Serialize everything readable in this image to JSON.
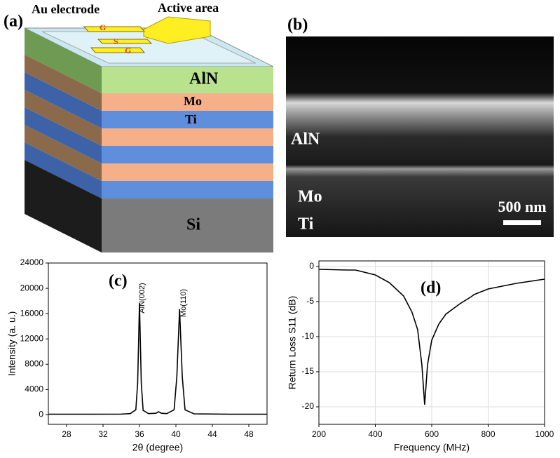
{
  "panels": {
    "a": {
      "label": "(a)",
      "callouts": [
        "Au electrode",
        "Active area"
      ],
      "electrode_labels": [
        "G",
        "S",
        "G"
      ],
      "layers": [
        "AlN",
        "Mo",
        "Ti",
        "Si"
      ]
    },
    "b": {
      "label": "(b)",
      "layers": [
        "AlN",
        "Mo",
        "Ti"
      ],
      "scale_bar": "500 nm"
    }
  },
  "chart_data": [
    {
      "type": "line",
      "panel_label": "(c)",
      "xlabel": "2θ (degree)",
      "ylabel": "Intensity (a. u.)",
      "annotations": [
        "AlN(002)",
        "Mo(110)"
      ],
      "x": [
        26,
        30,
        34,
        35,
        35.6,
        35.8,
        36.0,
        36.2,
        36.4,
        37,
        37.8,
        38.1,
        38.4,
        39,
        39.8,
        40.1,
        40.4,
        40.7,
        41,
        42,
        46,
        50
      ],
      "series": [
        {
          "color": "#000000",
          "values": [
            100,
            100,
            120,
            200,
            800,
            5000,
            17700,
            5000,
            700,
            200,
            250,
            500,
            250,
            200,
            800,
            6000,
            16700,
            6000,
            800,
            150,
            100,
            100
          ]
        }
      ],
      "xlim": [
        26,
        50
      ],
      "xticks": [
        28,
        32,
        36,
        40,
        44,
        48
      ],
      "ylim": [
        -1500,
        24000
      ],
      "yticks": [
        0,
        4000,
        8000,
        12000,
        16000,
        20000,
        24000
      ],
      "grid": false
    },
    {
      "type": "line",
      "panel_label": "(d)",
      "xlabel": "Frequency (MHz)",
      "ylabel": "Return Loss S11 (dB)",
      "x": [
        200,
        300,
        330,
        400,
        450,
        500,
        530,
        550,
        565,
        575,
        585,
        600,
        625,
        650,
        700,
        740,
        750,
        800,
        900,
        1000
      ],
      "series": [
        {
          "color": "#000000",
          "values": [
            -0.4,
            -0.5,
            -0.5,
            -1.2,
            -2.3,
            -4.2,
            -6.5,
            -9,
            -14,
            -19.7,
            -14,
            -10.5,
            -8.2,
            -6.8,
            -5.3,
            -4.3,
            -4.0,
            -3.2,
            -2.4,
            -1.8
          ]
        }
      ],
      "xlim": [
        200,
        1000
      ],
      "xticks": [
        200,
        400,
        600,
        800,
        1000
      ],
      "ylim": [
        -22.5,
        0.8
      ],
      "yticks": [
        0,
        -5,
        -10,
        -15,
        -20
      ],
      "grid": true
    }
  ]
}
